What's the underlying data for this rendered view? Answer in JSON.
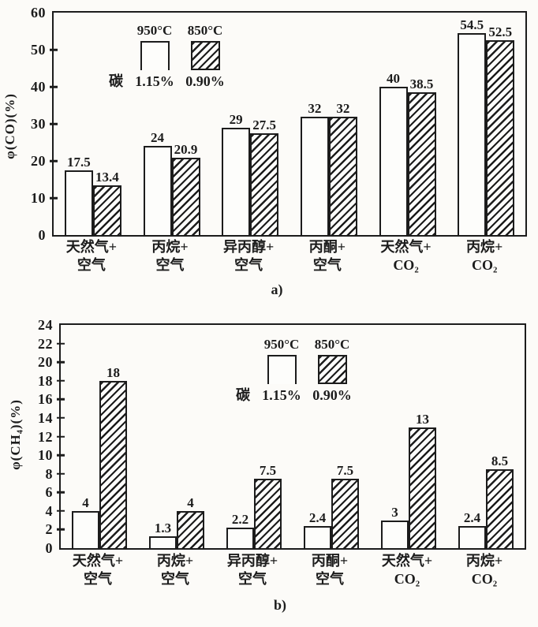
{
  "colors": {
    "ink": "#1c1c1c",
    "paper": "#fcfbf8",
    "bar_fill": "#fdfdfb"
  },
  "chart_data": [
    {
      "type": "bar",
      "panel": "a)",
      "ylabel": "φ(CO)(%)",
      "ylim": [
        0,
        60
      ],
      "yticks": [
        0,
        10,
        20,
        30,
        40,
        50,
        60
      ],
      "grid": false,
      "legend_position": "upper-left",
      "categories": [
        "天然气+空气",
        "丙烷+空气",
        "异丙醇+空气",
        "丙酮+空气",
        "天然气+CO₂",
        "丙烷+CO₂"
      ],
      "category_lines": [
        [
          "天然气+",
          "空气"
        ],
        [
          "丙烷+",
          "空气"
        ],
        [
          "异丙醇+",
          "空气"
        ],
        [
          "丙酮+",
          "空气"
        ],
        [
          "天然气+",
          "CO₂"
        ],
        [
          "丙烷+",
          "CO₂"
        ]
      ],
      "series": [
        {
          "name": "950°C",
          "carbon": "1.15%",
          "fill": "white",
          "values": [
            17.5,
            24,
            29,
            32,
            40,
            54.5
          ]
        },
        {
          "name": "850°C",
          "carbon": "0.90%",
          "fill": "hatch",
          "values": [
            13.4,
            20.9,
            27.5,
            32,
            38.5,
            52.5
          ]
        }
      ],
      "legend": {
        "carbon_prefix": "碳",
        "temps": [
          "950°C",
          "850°C"
        ],
        "carbons": [
          "1.15%",
          "0.90%"
        ]
      }
    },
    {
      "type": "bar",
      "panel": "b)",
      "ylabel": "φ(CH₄)(%)",
      "ylim": [
        0,
        24
      ],
      "yticks": [
        0,
        2,
        4,
        6,
        8,
        10,
        12,
        14,
        16,
        18,
        20,
        22,
        24
      ],
      "grid": false,
      "legend_position": "upper-center",
      "categories": [
        "天然气+空气",
        "丙烷+空气",
        "异丙醇+空气",
        "丙酮+空气",
        "天然气+CO₂",
        "丙烷+CO₂"
      ],
      "category_lines": [
        [
          "天然气+",
          "空气"
        ],
        [
          "丙烷+",
          "空气"
        ],
        [
          "异丙醇+",
          "空气"
        ],
        [
          "丙酮+",
          "空气"
        ],
        [
          "天然气+",
          "CO₂"
        ],
        [
          "丙烷+",
          "CO₂"
        ]
      ],
      "series": [
        {
          "name": "950°C",
          "carbon": "1.15%",
          "fill": "white",
          "values": [
            4,
            1.3,
            2.2,
            2.4,
            3,
            2.4
          ]
        },
        {
          "name": "850°C",
          "carbon": "0.90%",
          "fill": "hatch",
          "values": [
            18,
            4,
            7.5,
            7.5,
            13,
            8.5
          ]
        }
      ],
      "legend": {
        "carbon_prefix": "碳",
        "temps": [
          "950°C",
          "850°C"
        ],
        "carbons": [
          "1.15%",
          "0.90%"
        ]
      }
    }
  ]
}
